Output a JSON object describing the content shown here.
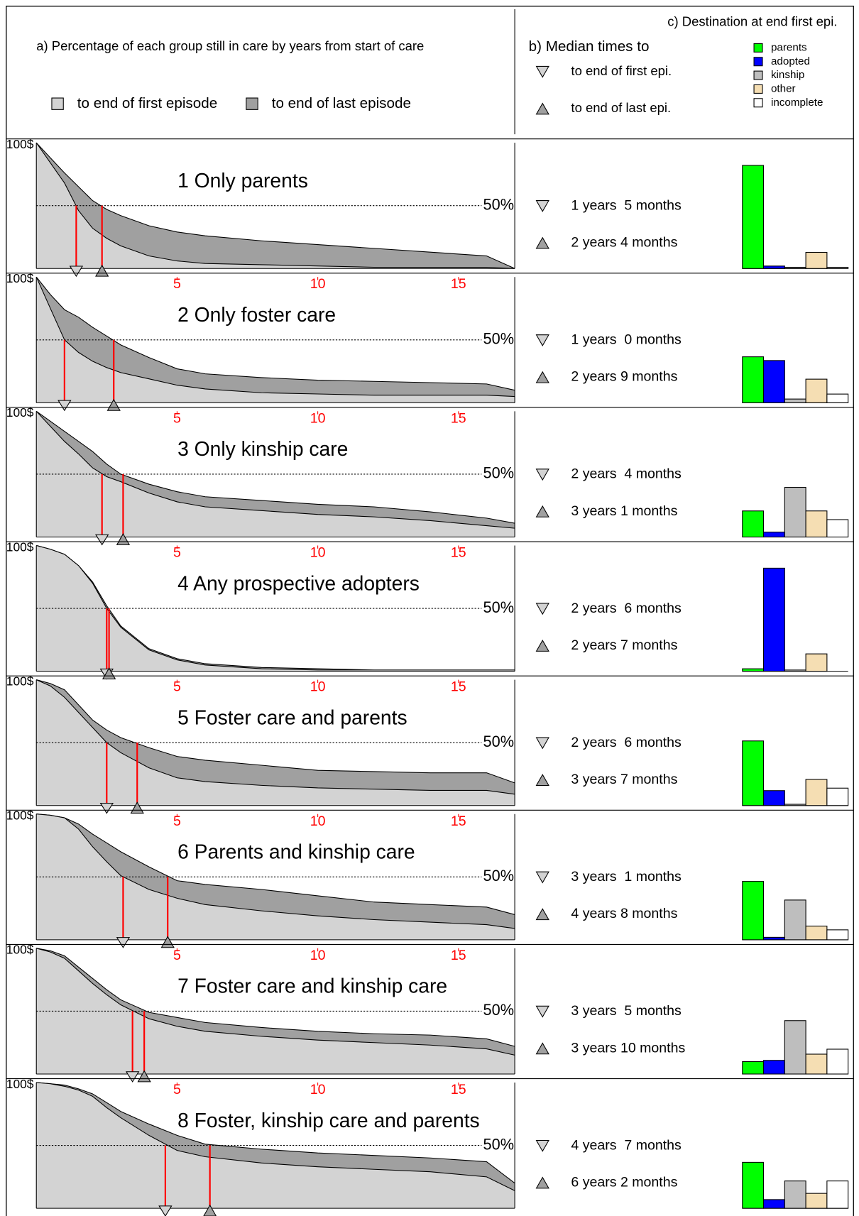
{
  "header": {
    "title_a": "a) Percentage of each group still in care by years from start of care",
    "legend_a": [
      {
        "name": "to end of first episode",
        "color": "#d3d3d3"
      },
      {
        "name": "to end of last episode",
        "color": "#a0a0a0"
      }
    ],
    "title_b": "b) Median times to",
    "legend_b": [
      "to end of first epi.",
      "to end of last epi."
    ],
    "title_c": "c) Destination at end first epi.",
    "destinations": [
      {
        "name": "parents",
        "color": "#00ff00"
      },
      {
        "name": "adopted",
        "color": "#0000ff"
      },
      {
        "name": "kinship",
        "color": "#bebebe"
      },
      {
        "name": "other",
        "color": "#f5deb3"
      },
      {
        "name": "incomplete",
        "color": "#ffffff"
      }
    ]
  },
  "chart_data": [
    {
      "type": "area",
      "title": "1 Only parents",
      "x": [
        0,
        0.5,
        1,
        1.5,
        2,
        2.5,
        3,
        4,
        5,
        6,
        8,
        10,
        12,
        14,
        16,
        17
      ],
      "xlim": [
        0,
        17
      ],
      "ylim": [
        0,
        100
      ],
      "yticks": [
        {
          "value": 100,
          "label": "100$"
        },
        {
          "value": 50,
          "label": "50%"
        }
      ],
      "series": [
        {
          "color": "#d3d3d3",
          "values": [
            100,
            84,
            68,
            46,
            32,
            24,
            18,
            10,
            6,
            4,
            3,
            2,
            1,
            1,
            1,
            0
          ]
        },
        {
          "color": "#a0a0a0",
          "values": [
            100,
            88,
            76,
            65,
            54,
            47,
            42,
            34,
            29,
            26,
            22,
            19,
            16,
            13,
            10,
            0
          ]
        }
      ],
      "medians": [
        {
          "value": 1.417,
          "label": "1 years  5 months"
        },
        {
          "value": 2.333,
          "label": "2 years 4 months"
        }
      ],
      "destination_values": [
        83,
        2,
        1,
        13,
        1
      ]
    },
    {
      "type": "area",
      "title": "2 Only foster care",
      "x": [
        0,
        0.5,
        1,
        1.5,
        2,
        2.5,
        3,
        4,
        5,
        6,
        8,
        10,
        12,
        14,
        16,
        17
      ],
      "xlim": [
        0,
        17
      ],
      "xticks": [
        5,
        10,
        15
      ],
      "ylim": [
        0,
        100
      ],
      "yticks": [
        {
          "value": 100,
          "label": "100$"
        },
        {
          "value": 50,
          "label": "50%"
        }
      ],
      "series": [
        {
          "color": "#d3d3d3",
          "values": [
            100,
            75,
            50,
            40,
            33,
            28,
            24,
            19,
            14,
            11,
            8,
            7,
            6,
            6,
            6,
            5
          ]
        },
        {
          "color": "#a0a0a0",
          "values": [
            100,
            86,
            74,
            68,
            60,
            53,
            46,
            36,
            27,
            23,
            20,
            18,
            17,
            16,
            15,
            10
          ]
        }
      ],
      "medians": [
        {
          "value": 1.0,
          "label": "1 years  0 months"
        },
        {
          "value": 2.75,
          "label": "2 years 9 months"
        }
      ],
      "destination_values": [
        37,
        34,
        3,
        19,
        7
      ]
    },
    {
      "type": "area",
      "title": "3 Only kinship care",
      "x": [
        0,
        0.5,
        1,
        1.5,
        2,
        2.5,
        3,
        4,
        5,
        6,
        8,
        10,
        12,
        14,
        16,
        17
      ],
      "xlim": [
        0,
        17
      ],
      "xticks": [
        5,
        10,
        15
      ],
      "ylim": [
        0,
        100
      ],
      "yticks": [
        {
          "value": 100,
          "label": "100$"
        },
        {
          "value": 50,
          "label": "50%"
        }
      ],
      "series": [
        {
          "color": "#d3d3d3",
          "values": [
            100,
            88,
            76,
            66,
            55,
            48,
            44,
            35,
            28,
            24,
            21,
            18,
            16,
            13,
            9,
            7
          ]
        },
        {
          "color": "#a0a0a0",
          "values": [
            100,
            92,
            84,
            76,
            68,
            58,
            50,
            42,
            36,
            32,
            29,
            26,
            24,
            20,
            15,
            11
          ]
        }
      ],
      "medians": [
        {
          "value": 2.333,
          "label": "2 years  4 months"
        },
        {
          "value": 3.083,
          "label": "3 years 1 months"
        }
      ],
      "destination_values": [
        21,
        4,
        40,
        21,
        14
      ]
    },
    {
      "type": "area",
      "title": "4 Any prospective adopters",
      "x": [
        0,
        0.5,
        1,
        1.5,
        2,
        2.5,
        3,
        4,
        5,
        6,
        8,
        10,
        12,
        14,
        16,
        17
      ],
      "xlim": [
        0,
        17
      ],
      "xticks": [
        5,
        10,
        15
      ],
      "ylim": [
        0,
        100
      ],
      "yticks": [
        {
          "value": 100,
          "label": "100$"
        },
        {
          "value": 50,
          "label": "50%"
        }
      ],
      "series": [
        {
          "color": "#d3d3d3",
          "values": [
            100,
            97,
            93,
            84,
            70,
            50,
            35,
            17,
            9,
            5,
            2,
            1,
            1,
            1,
            1,
            1
          ]
        },
        {
          "color": "#a0a0a0",
          "values": [
            100,
            97,
            93,
            84,
            71,
            52,
            36,
            18,
            10,
            6,
            3,
            2,
            1,
            1,
            1,
            1
          ]
        }
      ],
      "medians": [
        {
          "value": 2.5,
          "label": "2 years  6 months"
        },
        {
          "value": 2.583,
          "label": "2 years 7 months"
        }
      ],
      "destination_values": [
        2,
        83,
        1,
        14,
        0
      ]
    },
    {
      "type": "area",
      "title": "5 Foster care and parents",
      "x": [
        0,
        0.5,
        1,
        1.5,
        2,
        2.5,
        3,
        4,
        5,
        6,
        8,
        10,
        12,
        14,
        16,
        17
      ],
      "xlim": [
        0,
        17
      ],
      "xticks": [
        5,
        10,
        15
      ],
      "ylim": [
        0,
        100
      ],
      "yticks": [
        {
          "value": 100,
          "label": "100$"
        },
        {
          "value": 50,
          "label": "50%"
        }
      ],
      "series": [
        {
          "color": "#d3d3d3",
          "values": [
            100,
            95,
            86,
            74,
            62,
            50,
            42,
            30,
            22,
            19,
            16,
            14,
            13,
            12,
            12,
            9
          ]
        },
        {
          "color": "#a0a0a0",
          "values": [
            100,
            97,
            92,
            80,
            68,
            60,
            54,
            46,
            39,
            36,
            32,
            28,
            27,
            26,
            26,
            18
          ]
        }
      ],
      "medians": [
        {
          "value": 2.5,
          "label": "2 years  6 months"
        },
        {
          "value": 3.583,
          "label": "3 years 7 months"
        }
      ],
      "destination_values": [
        52,
        12,
        1,
        21,
        14
      ]
    },
    {
      "type": "area",
      "title": "6 Parents and kinship care",
      "x": [
        0,
        0.5,
        1,
        1.5,
        2,
        2.5,
        3,
        4,
        5,
        6,
        8,
        10,
        12,
        14,
        16,
        17
      ],
      "xlim": [
        0,
        17
      ],
      "xticks": [
        5,
        10,
        15
      ],
      "ylim": [
        0,
        100
      ],
      "yticks": [
        {
          "value": 100,
          "label": "100$"
        },
        {
          "value": 50,
          "label": "50%"
        }
      ],
      "series": [
        {
          "color": "#d3d3d3",
          "values": [
            100,
            99,
            97,
            88,
            74,
            62,
            51,
            40,
            33,
            28,
            23,
            19,
            16,
            14,
            12,
            9
          ]
        },
        {
          "color": "#a0a0a0",
          "values": [
            100,
            99,
            97,
            92,
            84,
            77,
            70,
            58,
            47,
            44,
            40,
            35,
            30,
            28,
            26,
            20
          ]
        }
      ],
      "medians": [
        {
          "value": 3.083,
          "label": "3 years  1 months"
        },
        {
          "value": 4.667,
          "label": "4 years 8 months"
        }
      ],
      "destination_values": [
        47,
        2,
        32,
        11,
        8
      ]
    },
    {
      "type": "area",
      "title": "7 Foster care and kinship care",
      "x": [
        0,
        0.5,
        1,
        1.5,
        2,
        2.5,
        3,
        4,
        5,
        6,
        8,
        10,
        12,
        14,
        16,
        17
      ],
      "xlim": [
        0,
        17
      ],
      "xticks": [
        5,
        10,
        15
      ],
      "ylim": [
        0,
        100
      ],
      "yticks": [
        {
          "value": 100,
          "label": "100$"
        },
        {
          "value": 50,
          "label": "50%"
        }
      ],
      "series": [
        {
          "color": "#d3d3d3",
          "values": [
            100,
            97,
            92,
            82,
            72,
            63,
            55,
            44,
            38,
            34,
            30,
            27,
            25,
            23,
            20,
            15
          ]
        },
        {
          "color": "#a0a0a0",
          "values": [
            100,
            98,
            94,
            85,
            76,
            67,
            59,
            49,
            45,
            41,
            37,
            34,
            32,
            31,
            28,
            22
          ]
        }
      ],
      "medians": [
        {
          "value": 3.417,
          "label": "3 years  5 months"
        },
        {
          "value": 3.833,
          "label": "3 years 10 months"
        }
      ],
      "destination_values": [
        10,
        11,
        43,
        16,
        20
      ]
    },
    {
      "type": "area",
      "title": "8 Foster, kinship care and parents",
      "x": [
        0,
        0.5,
        1,
        1.5,
        2,
        2.5,
        3,
        4,
        5,
        6,
        8,
        10,
        12,
        14,
        16,
        17
      ],
      "xlim": [
        0,
        17
      ],
      "xticks": [
        5,
        10,
        15
      ],
      "ylim": [
        0,
        100
      ],
      "yticks": [
        {
          "value": 100,
          "label": "100$"
        },
        {
          "value": 50,
          "label": "50%"
        }
      ],
      "series": [
        {
          "color": "#d3d3d3",
          "values": [
            100,
            99,
            97,
            94,
            89,
            80,
            72,
            58,
            46,
            41,
            36,
            33,
            31,
            29,
            25,
            14
          ]
        },
        {
          "color": "#a0a0a0",
          "values": [
            100,
            99,
            98,
            95,
            91,
            84,
            77,
            67,
            58,
            51,
            47,
            44,
            42,
            40,
            37,
            20
          ]
        }
      ],
      "medians": [
        {
          "value": 4.583,
          "label": "4 years  7 months"
        },
        {
          "value": 6.167,
          "label": "6 years 2 months"
        }
      ],
      "destination_values": [
        37,
        7,
        22,
        12,
        22
      ]
    }
  ]
}
